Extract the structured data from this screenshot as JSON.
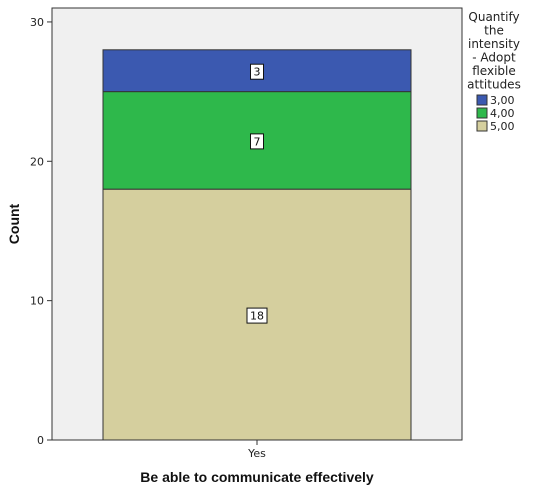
{
  "chart_data": {
    "type": "bar",
    "stacked": true,
    "categories": [
      "Yes"
    ],
    "series": [
      {
        "name": "5,00",
        "values": [
          18
        ],
        "color": "#d5cf9e"
      },
      {
        "name": "4,00",
        "values": [
          7
        ],
        "color": "#2eb84b"
      },
      {
        "name": "3,00",
        "values": [
          3
        ],
        "color": "#3b59b0"
      }
    ],
    "data_labels": true,
    "title": "",
    "xlabel": "Be able to communicate effectively",
    "ylabel": "Count",
    "ylim": [
      0,
      31
    ],
    "yticks": [
      0,
      10,
      20,
      30
    ],
    "grid": false,
    "legend": {
      "title_lines": [
        "Quantify",
        "the",
        "intensity",
        "- Adopt",
        "flexible",
        "attitudes"
      ],
      "items": [
        "3,00",
        "4,00",
        "5,00"
      ],
      "placement": "right"
    },
    "colors": {
      "plot_background": "#f0f0f0",
      "bar_outline": "#333333",
      "axis": "#333333"
    }
  }
}
